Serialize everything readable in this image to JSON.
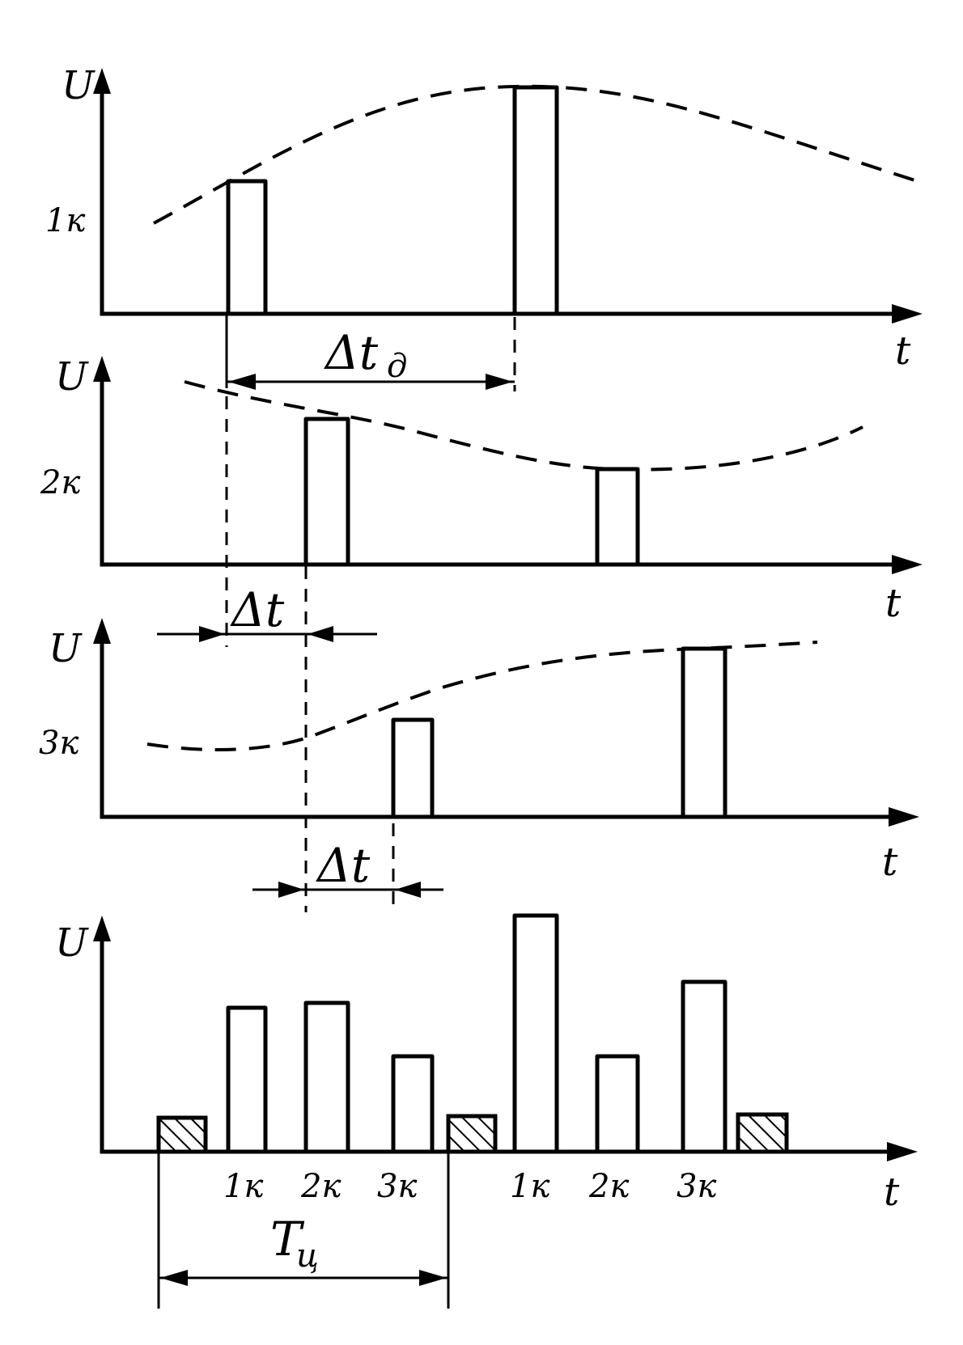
{
  "labels": {
    "voltage": "U",
    "time": "t",
    "ch1": "1к",
    "ch2": "2к",
    "ch3": "3к",
    "sampling_interval": "Δt",
    "sampling_subscript": "д",
    "channel_shift": "Δt",
    "cycle_period": "T",
    "cycle_subscript": "ц"
  },
  "bottom_axis_labels": [
    "1к",
    "2к",
    "3к",
    "1к",
    "2к",
    "3к"
  ]
}
